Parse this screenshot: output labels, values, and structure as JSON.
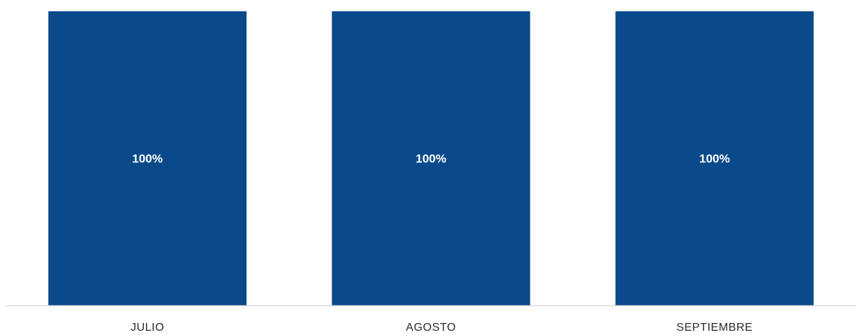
{
  "chart_data": {
    "type": "bar",
    "categories": [
      "JULIO",
      "AGOSTO",
      "SEPTIEMBRE"
    ],
    "values": [
      100,
      100,
      100
    ],
    "data_labels": [
      "100%",
      "100%",
      "100%"
    ],
    "ylim": [
      0,
      100
    ],
    "bar_color": "#0a4a8a",
    "axis_color": "#d9d9d9",
    "grid": false,
    "legend": "none"
  }
}
